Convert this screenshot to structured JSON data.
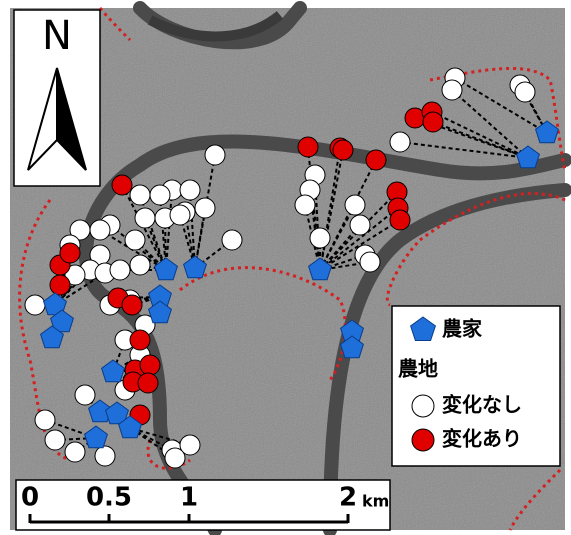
{
  "north_label": "N",
  "legend": {
    "farm": "農家",
    "field_header": "農地",
    "no_change": "変化なし",
    "changed": "変化あり"
  },
  "scale_bar": {
    "labels": [
      "0",
      "0.5",
      "1",
      "2"
    ],
    "unit": "km"
  }
}
